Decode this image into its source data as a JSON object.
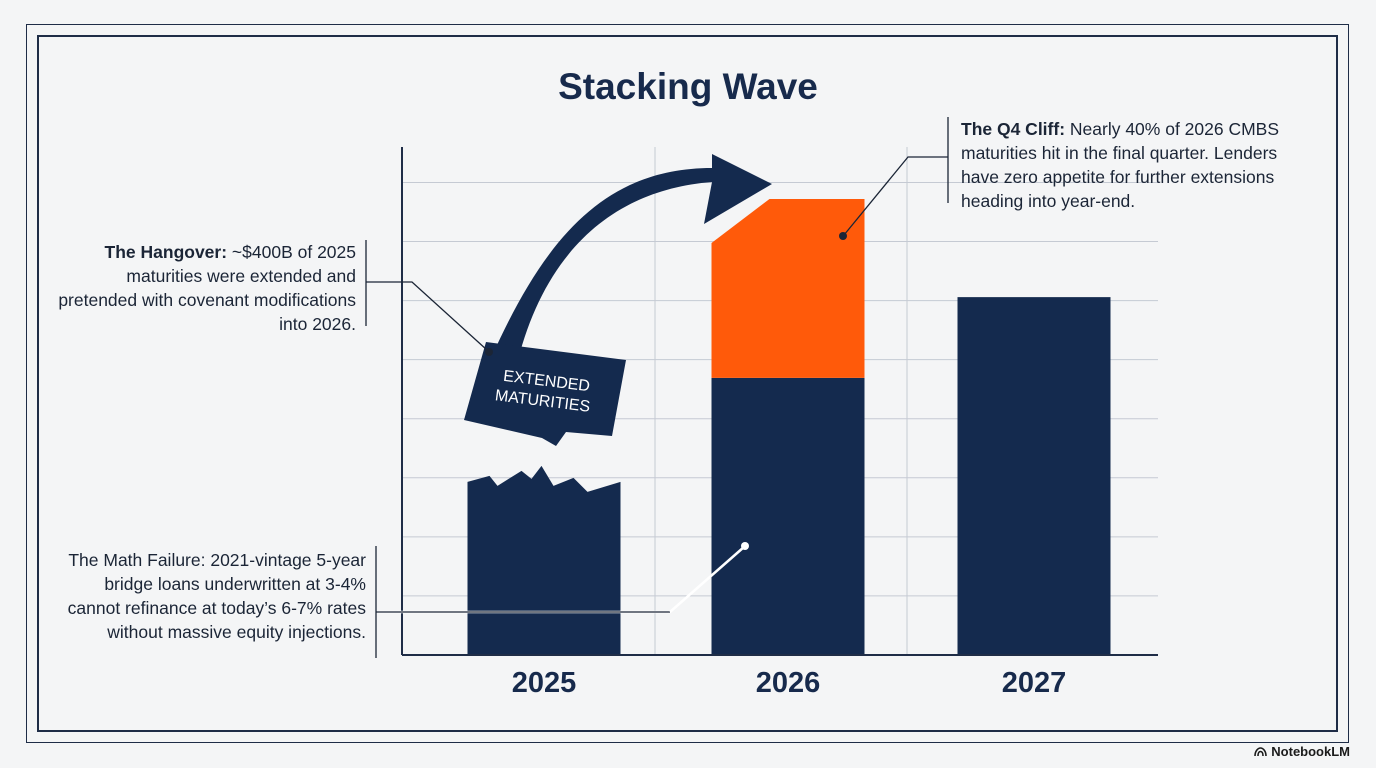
{
  "title": "Stacking Wave",
  "brand": {
    "name": "NotebookLM",
    "icon": "notebooklm-logo-icon"
  },
  "colors": {
    "navy": "#142a4e",
    "orange": "#ff5a0a",
    "grid": "#c5cad3",
    "frame": "#1f2d47"
  },
  "annotations": {
    "hangover": {
      "label": "The Hangover:",
      "text": " ~$400B of 2025 maturities were extended and pretended with covenant modifications into 2026."
    },
    "q4_cliff": {
      "label": "The Q4 Cliff:",
      "text": " Nearly 40% of 2026 CMBS maturities hit in the final quarter. Lenders have zero appetite for further extensions heading into year-end."
    },
    "math_failure": {
      "text": "The Math Failure: 2021-vintage 5-year bridge loans underwritten at 3-4% cannot refinance at today’s 6-7% rates without massive equity injections."
    }
  },
  "chart_data": {
    "type": "bar",
    "title": "Stacking Wave",
    "categories": [
      "2025",
      "2026",
      "2027"
    ],
    "series": [
      {
        "values": [
          30,
          48,
          62
        ]
      },
      {
        "values": [
          0,
          31,
          0
        ]
      }
    ],
    "ylim": [
      0,
      88
    ],
    "grid": true,
    "xlabel": "",
    "ylabel": "",
    "arrow_label": "EXTENDED MATURITIES"
  }
}
